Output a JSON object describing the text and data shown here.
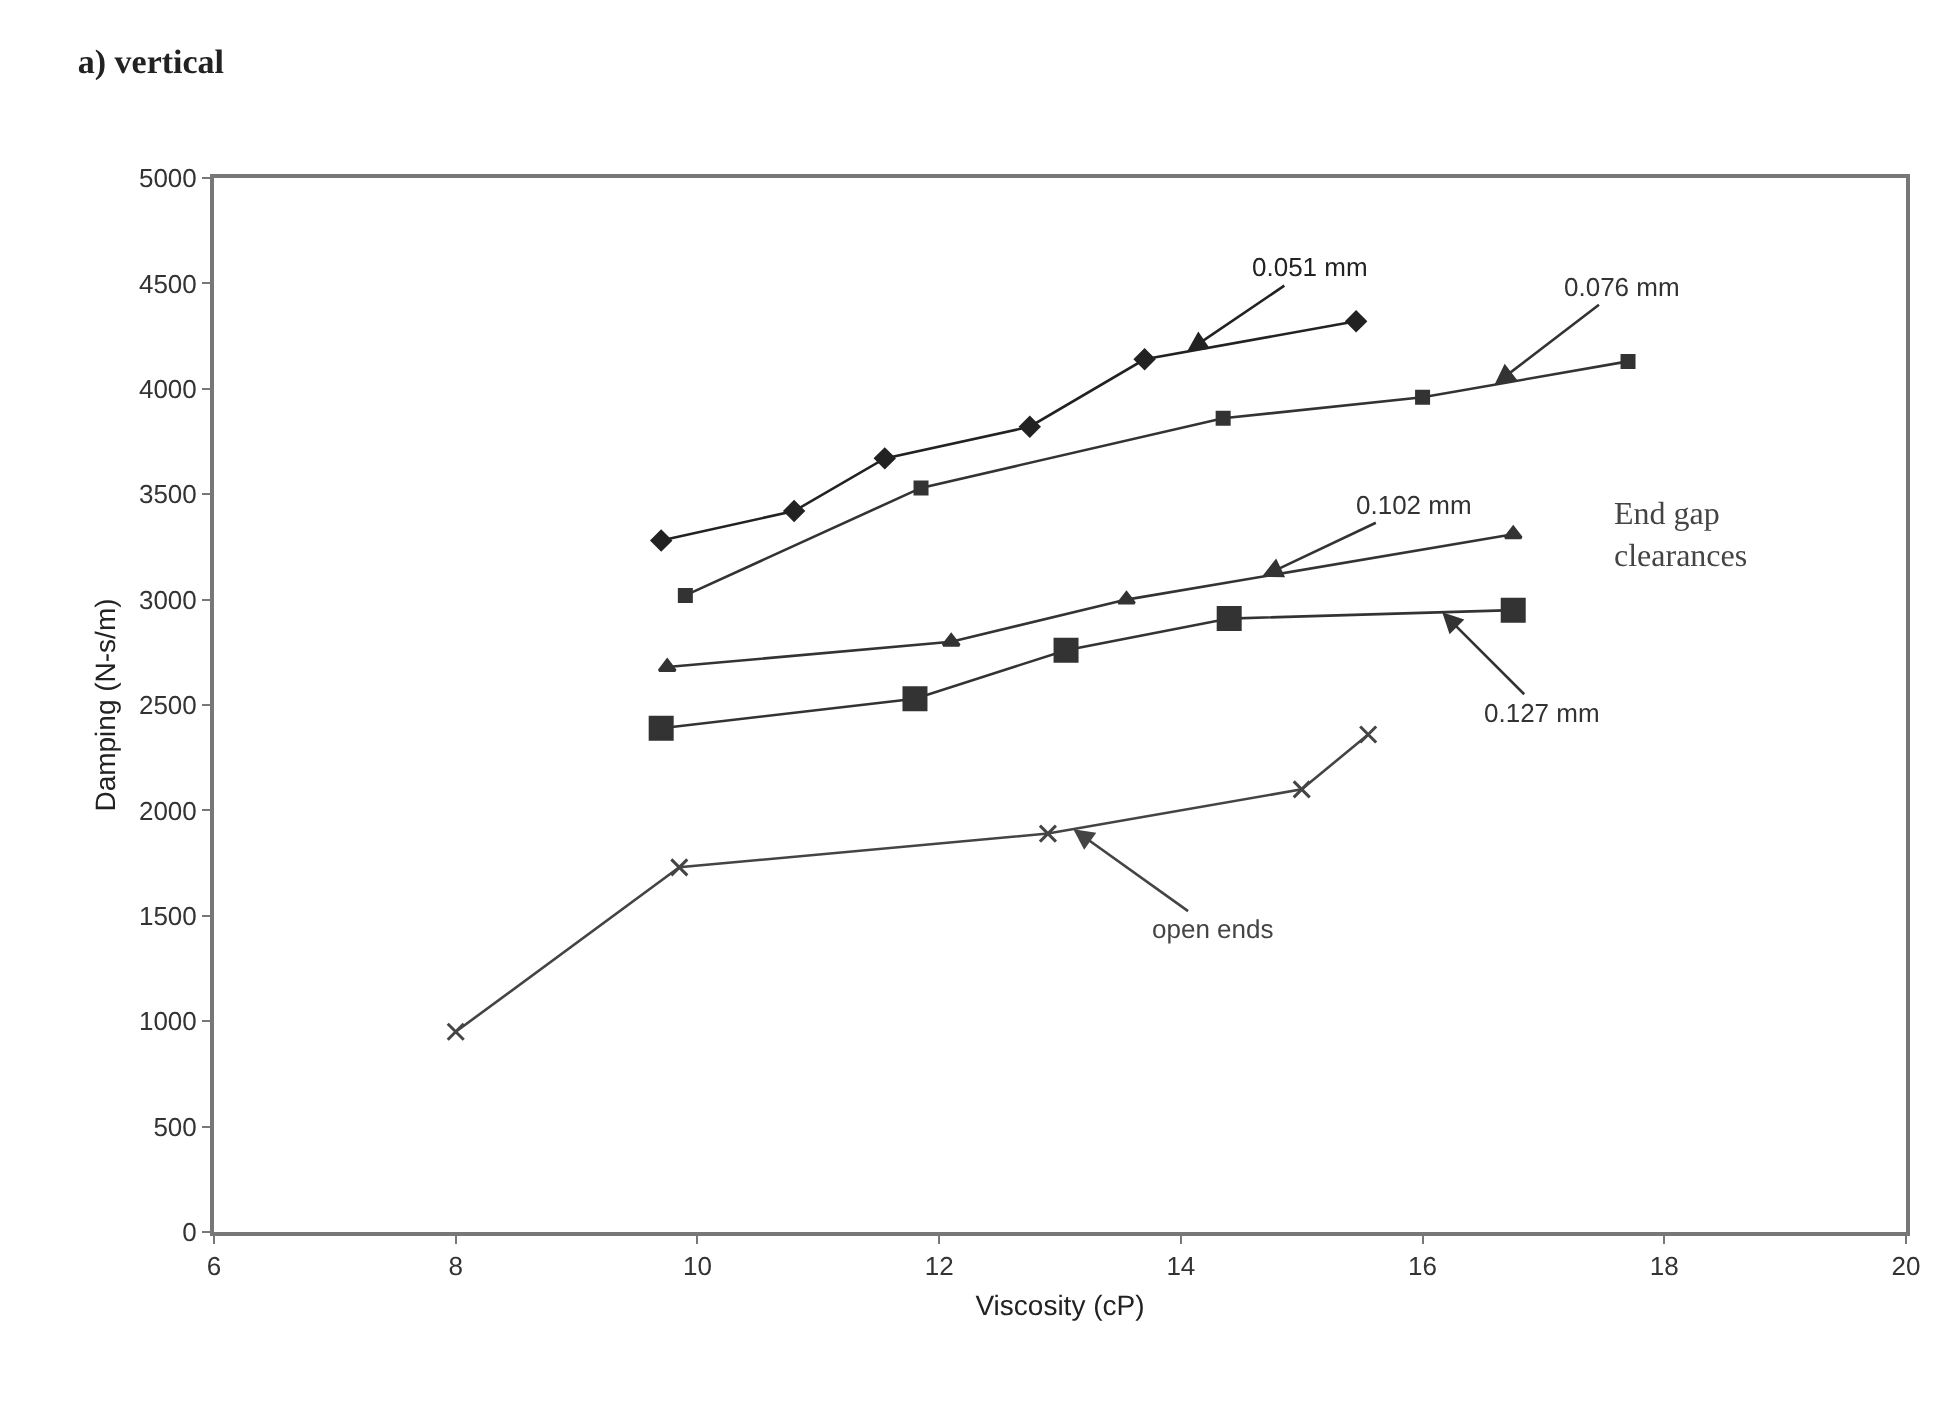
{
  "chart_data": {
    "type": "line",
    "title": "a) vertical",
    "xlabel": "Viscosity (cP)",
    "ylabel": "Damping (N-s/m)",
    "xlim": [
      6,
      20
    ],
    "xticks": [
      6,
      8,
      10,
      12,
      14,
      16,
      18,
      20
    ],
    "ylim": [
      0,
      5000
    ],
    "yticks": [
      0,
      500,
      1000,
      1500,
      2000,
      2500,
      3000,
      3500,
      4000,
      4500,
      5000
    ],
    "legend": false,
    "series": [
      {
        "name": "0.051 mm",
        "color": "#222222",
        "marker": "diamond",
        "x": [
          9.7,
          10.8,
          11.55,
          12.75,
          13.7,
          15.45
        ],
        "values": [
          3280,
          3420,
          3670,
          3820,
          4140,
          4320
        ]
      },
      {
        "name": "0.076 mm",
        "color": "#333333",
        "marker": "square",
        "x": [
          9.9,
          11.85,
          14.35,
          16.0,
          17.7
        ],
        "values": [
          3020,
          3530,
          3860,
          3960,
          4130
        ]
      },
      {
        "name": "0.102 mm",
        "color": "#333333",
        "marker": "triangle",
        "x": [
          9.75,
          12.1,
          13.55,
          16.75
        ],
        "values": [
          2680,
          2800,
          3000,
          3310
        ]
      },
      {
        "name": "0.127 mm",
        "color": "#333333",
        "marker": "square",
        "x": [
          9.7,
          11.8,
          13.05,
          14.4,
          16.75
        ],
        "values": [
          2390,
          2530,
          2760,
          2910,
          2950
        ]
      },
      {
        "name": "open ends",
        "color": "#444444",
        "marker": "cross",
        "x": [
          8.0,
          9.85,
          12.9,
          15.0,
          15.55
        ],
        "values": [
          950,
          1730,
          1890,
          2100,
          2360
        ]
      }
    ],
    "annotations": [
      "End gap clearances"
    ]
  }
}
